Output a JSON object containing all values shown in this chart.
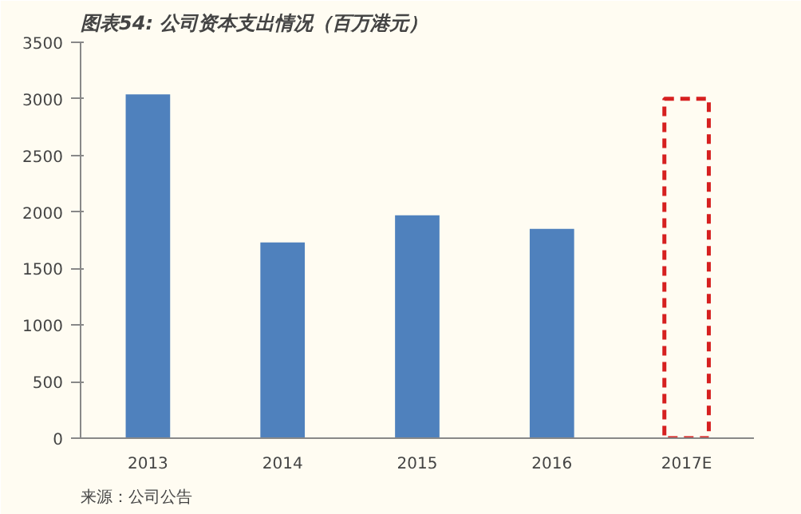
{
  "chart_data": {
    "type": "bar",
    "title": "图表54: 公司资本支出情况（百万港元）",
    "categories": [
      "2013",
      "2014",
      "2015",
      "2016",
      "2017E"
    ],
    "series": [
      {
        "color": "#4f81bd",
        "values": [
          3040,
          1730,
          1970,
          1850,
          null
        ]
      },
      {
        "color": "#d62020",
        "values": [
          null,
          null,
          null,
          null,
          3000
        ],
        "line_style": "dashed"
      }
    ],
    "ylim": [
      0,
      3500
    ],
    "yticks": [
      0,
      500,
      1000,
      1500,
      2000,
      2500,
      3000,
      3500
    ],
    "grid": false,
    "annotations": [
      "来源：公司公告"
    ]
  }
}
